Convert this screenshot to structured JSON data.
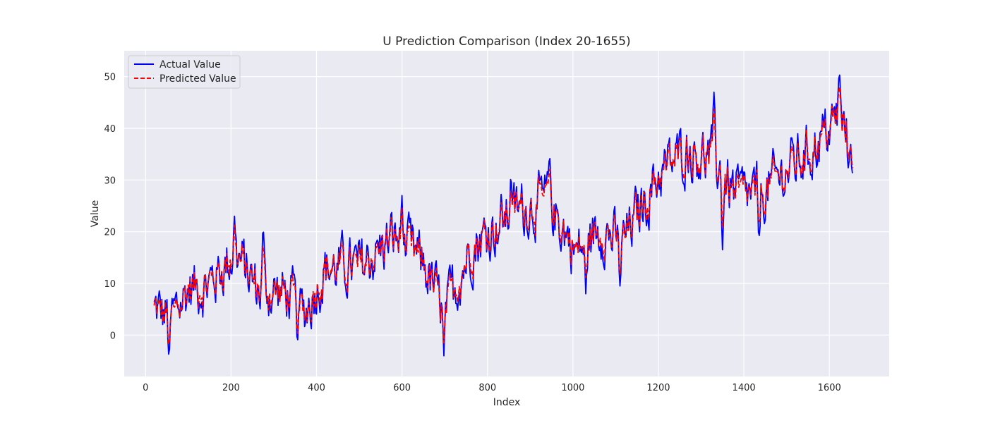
{
  "chart_data": {
    "type": "line",
    "title": "U Prediction Comparison (Index 20-1655)",
    "xlabel": "Index",
    "ylabel": "Value",
    "xlim": [
      -50,
      1740
    ],
    "ylim": [
      -8,
      55
    ],
    "xticks": [
      0,
      200,
      400,
      600,
      800,
      1000,
      1200,
      1400,
      1600
    ],
    "yticks": [
      0,
      10,
      20,
      30,
      40,
      50
    ],
    "grid": true,
    "legend_position": "top-left",
    "x_start": 20,
    "x_end": 1655,
    "series": [
      {
        "name": "Actual Value",
        "color": "#0000ff",
        "style": "solid"
      },
      {
        "name": "Predicted Value",
        "color": "#ff0000",
        "style": "dashed"
      }
    ],
    "trend_anchors": [
      {
        "x": 20,
        "y": 5
      },
      {
        "x": 60,
        "y": 3
      },
      {
        "x": 100,
        "y": 9
      },
      {
        "x": 150,
        "y": 10
      },
      {
        "x": 210,
        "y": 16
      },
      {
        "x": 260,
        "y": 9
      },
      {
        "x": 330,
        "y": 8
      },
      {
        "x": 370,
        "y": 4
      },
      {
        "x": 420,
        "y": 13
      },
      {
        "x": 500,
        "y": 13
      },
      {
        "x": 580,
        "y": 19
      },
      {
        "x": 650,
        "y": 14
      },
      {
        "x": 700,
        "y": 4
      },
      {
        "x": 760,
        "y": 17
      },
      {
        "x": 860,
        "y": 24
      },
      {
        "x": 940,
        "y": 26
      },
      {
        "x": 1010,
        "y": 16
      },
      {
        "x": 1070,
        "y": 21
      },
      {
        "x": 1110,
        "y": 17
      },
      {
        "x": 1200,
        "y": 31
      },
      {
        "x": 1270,
        "y": 36
      },
      {
        "x": 1330,
        "y": 34
      },
      {
        "x": 1380,
        "y": 27
      },
      {
        "x": 1440,
        "y": 27
      },
      {
        "x": 1500,
        "y": 32
      },
      {
        "x": 1560,
        "y": 36
      },
      {
        "x": 1620,
        "y": 42
      },
      {
        "x": 1655,
        "y": 36
      }
    ],
    "actual_spikes": [
      {
        "x": 55,
        "y": -5
      },
      {
        "x": 208,
        "y": 23
      },
      {
        "x": 275,
        "y": 22
      },
      {
        "x": 355,
        "y": -1.5
      },
      {
        "x": 600,
        "y": 27
      },
      {
        "x": 698,
        "y": -4
      },
      {
        "x": 855,
        "y": 31.5
      },
      {
        "x": 945,
        "y": 35
      },
      {
        "x": 1030,
        "y": 8
      },
      {
        "x": 1110,
        "y": 9.5
      },
      {
        "x": 1330,
        "y": 47
      },
      {
        "x": 1350,
        "y": 16.5
      },
      {
        "x": 1435,
        "y": 17
      },
      {
        "x": 1623,
        "y": 52
      },
      {
        "x": 1645,
        "y": 32
      }
    ]
  }
}
